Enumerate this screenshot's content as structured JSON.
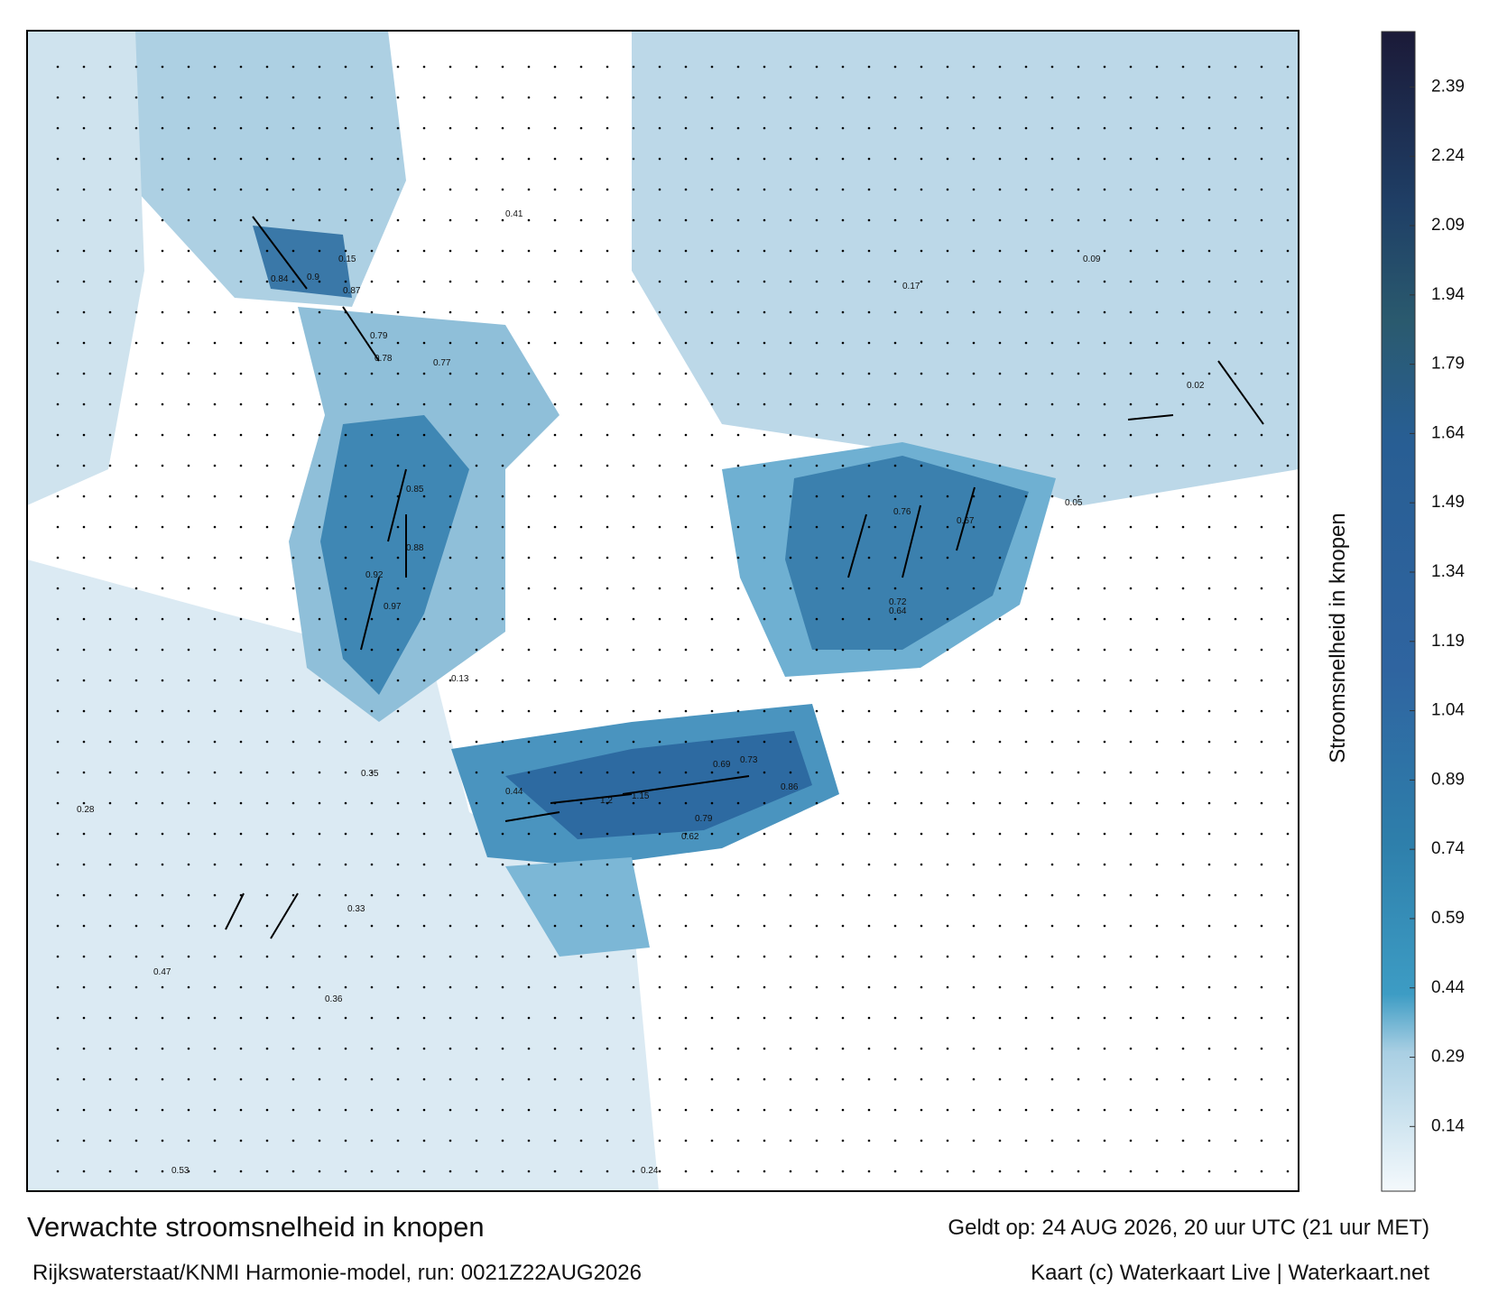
{
  "title": "Verwachte stroomsnelheid in knopen",
  "subtitle": "Rijkswaterstaat/KNMI Harmonie-model, run: 0021Z22AUG2026",
  "valid": "Geldt op: 24 AUG 2026, 20 uur UTC (21 uur MET)",
  "credit": "Kaart (c) Waterkaart Live | Waterkaart.net",
  "colorbar": {
    "label": "Stroomsnelheid in knopen",
    "range": [
      0,
      2.51
    ],
    "ticks": [
      0.14,
      0.29,
      0.44,
      0.59,
      0.74,
      0.89,
      1.04,
      1.19,
      1.34,
      1.49,
      1.64,
      1.79,
      1.94,
      2.09,
      2.24,
      2.39
    ]
  },
  "map_labels": [
    "0.84",
    "0.9",
    "0.87",
    "0.79",
    "0.78",
    "0.77",
    "0.88",
    "0.92",
    "0.97",
    "0.85",
    "0.76",
    "0.64",
    "0.67",
    "0.72",
    "1.2",
    "1.15",
    "0.86",
    "0.73",
    "0.69",
    "0.79",
    "0.62",
    "0.44",
    "0.35",
    "0.36",
    "0.33",
    "0.24",
    "0.15",
    "0.13",
    "0.02",
    "0.05",
    "0.28",
    "0.47",
    "0.53",
    "0.41",
    "0.17",
    "0.09"
  ]
}
